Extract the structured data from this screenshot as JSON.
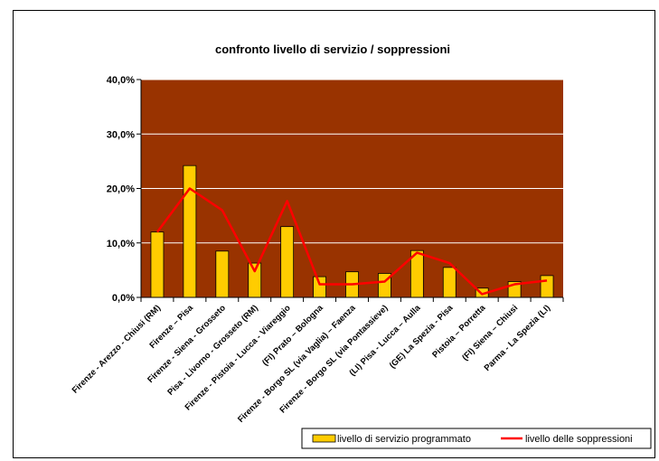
{
  "chart_data": {
    "type": "bar",
    "title": "confronto livello di servizio / soppressioni",
    "xlabel": "",
    "ylabel": "",
    "ylim": [
      0,
      40
    ],
    "y_ticks": [
      "0,0%",
      "10,0%",
      "20,0%",
      "30,0%",
      "40,0%"
    ],
    "grid": true,
    "legend_position": "bottom-right",
    "categories": [
      "Firenze - Arezzo - Chiusi (RM)",
      "Firenze – Pisa",
      "Firenze - Siena - Grosseto",
      "Pisa - Livorno - Grosseto (RM)",
      "Firenze - Pistoia - Lucca - Viareggio",
      "(FI) Prato – Bologna",
      "Firenze - Borgo SL (via Vaglia) – Faenza",
      "Firenze - Borgo SL (via Pontassieve)",
      "(LI) Pisa - Lucca – Aulla",
      "(GE) La Spezia - Pisa",
      "Pistoia – Porretta",
      "(FI) Siena – Chiusi",
      "Parma - La Spezia (LI)"
    ],
    "series": [
      {
        "name": "livello di servizio programmato",
        "type": "bar",
        "color": "#ffcc00",
        "values": [
          12.0,
          24.2,
          8.5,
          6.3,
          13.0,
          3.8,
          4.7,
          4.4,
          8.6,
          5.5,
          1.7,
          2.9,
          4.0
        ]
      },
      {
        "name": "livello delle soppressioni",
        "type": "line",
        "color": "#ff0000",
        "values": [
          12.0,
          20.0,
          16.0,
          4.8,
          17.7,
          2.4,
          2.4,
          2.9,
          8.2,
          6.3,
          0.6,
          2.4,
          3.1
        ]
      }
    ],
    "plot_background": "#993300",
    "gridline_color": "#ffffff"
  }
}
